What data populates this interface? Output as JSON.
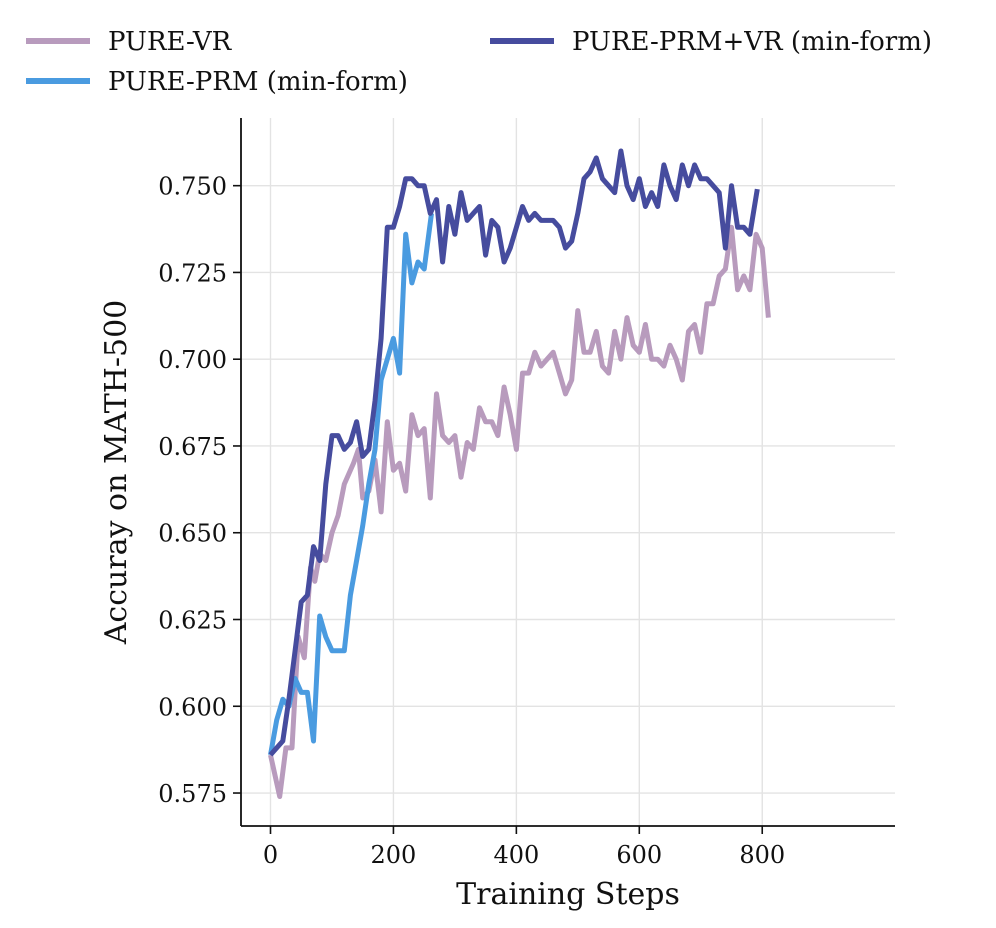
{
  "chart_data": {
    "type": "line",
    "title": "",
    "xlabel": "Training Steps",
    "ylabel": "Accuray on MATH-500",
    "xlim": [
      -48,
      1016
    ],
    "ylim": [
      0.5655,
      0.7695
    ],
    "xticks": [
      0,
      200,
      400,
      600,
      800
    ],
    "xtick_labels": [
      "0",
      "200",
      "400",
      "600",
      "800"
    ],
    "yticks": [
      0.575,
      0.6,
      0.625,
      0.65,
      0.675,
      0.7,
      0.725,
      0.75
    ],
    "ytick_labels": [
      "0.575",
      "0.600",
      "0.625",
      "0.650",
      "0.675",
      "0.700",
      "0.725",
      "0.750"
    ],
    "grid": true,
    "legend_position": "top",
    "series": [
      {
        "name": "PURE-VR",
        "color": "#b89bbd",
        "points": [
          [
            0,
            0.586
          ],
          [
            15,
            0.574
          ],
          [
            25,
            0.588
          ],
          [
            35,
            0.588
          ],
          [
            45,
            0.62
          ],
          [
            55,
            0.614
          ],
          [
            65,
            0.64
          ],
          [
            72,
            0.636
          ],
          [
            80,
            0.644
          ],
          [
            90,
            0.642
          ],
          [
            100,
            0.65
          ],
          [
            110,
            0.655
          ],
          [
            120,
            0.664
          ],
          [
            135,
            0.67
          ],
          [
            143,
            0.674
          ],
          [
            150,
            0.66
          ],
          [
            160,
            0.662
          ],
          [
            170,
            0.671
          ],
          [
            180,
            0.656
          ],
          [
            190,
            0.682
          ],
          [
            200,
            0.668
          ],
          [
            210,
            0.67
          ],
          [
            220,
            0.662
          ],
          [
            230,
            0.684
          ],
          [
            240,
            0.678
          ],
          [
            250,
            0.68
          ],
          [
            260,
            0.66
          ],
          [
            270,
            0.69
          ],
          [
            280,
            0.678
          ],
          [
            290,
            0.676
          ],
          [
            300,
            0.678
          ],
          [
            310,
            0.666
          ],
          [
            320,
            0.676
          ],
          [
            330,
            0.674
          ],
          [
            340,
            0.686
          ],
          [
            350,
            0.682
          ],
          [
            360,
            0.682
          ],
          [
            370,
            0.678
          ],
          [
            380,
            0.692
          ],
          [
            390,
            0.684
          ],
          [
            400,
            0.674
          ],
          [
            410,
            0.696
          ],
          [
            420,
            0.696
          ],
          [
            430,
            0.702
          ],
          [
            440,
            0.698
          ],
          [
            450,
            0.7
          ],
          [
            460,
            0.702
          ],
          [
            470,
            0.696
          ],
          [
            480,
            0.69
          ],
          [
            490,
            0.694
          ],
          [
            500,
            0.714
          ],
          [
            510,
            0.702
          ],
          [
            520,
            0.702
          ],
          [
            530,
            0.708
          ],
          [
            540,
            0.698
          ],
          [
            550,
            0.696
          ],
          [
            560,
            0.708
          ],
          [
            570,
            0.7
          ],
          [
            580,
            0.712
          ],
          [
            590,
            0.704
          ],
          [
            600,
            0.702
          ],
          [
            610,
            0.71
          ],
          [
            620,
            0.7
          ],
          [
            630,
            0.7
          ],
          [
            640,
            0.698
          ],
          [
            650,
            0.704
          ],
          [
            660,
            0.7
          ],
          [
            670,
            0.694
          ],
          [
            680,
            0.708
          ],
          [
            690,
            0.71
          ],
          [
            700,
            0.702
          ],
          [
            710,
            0.716
          ],
          [
            720,
            0.716
          ],
          [
            730,
            0.724
          ],
          [
            740,
            0.726
          ],
          [
            750,
            0.738
          ],
          [
            760,
            0.72
          ],
          [
            770,
            0.724
          ],
          [
            780,
            0.72
          ],
          [
            790,
            0.736
          ],
          [
            800,
            0.732
          ],
          [
            810,
            0.712
          ]
        ]
      },
      {
        "name": "PURE-PRM (min-form)",
        "color": "#4a9be0",
        "points": [
          [
            0,
            0.586
          ],
          [
            10,
            0.596
          ],
          [
            20,
            0.602
          ],
          [
            30,
            0.6
          ],
          [
            40,
            0.608
          ],
          [
            50,
            0.604
          ],
          [
            60,
            0.604
          ],
          [
            70,
            0.59
          ],
          [
            80,
            0.626
          ],
          [
            90,
            0.62
          ],
          [
            100,
            0.616
          ],
          [
            110,
            0.616
          ],
          [
            120,
            0.616
          ],
          [
            130,
            0.632
          ],
          [
            140,
            0.642
          ],
          [
            150,
            0.652
          ],
          [
            160,
            0.664
          ],
          [
            170,
            0.674
          ],
          [
            180,
            0.694
          ],
          [
            190,
            0.7
          ],
          [
            200,
            0.706
          ],
          [
            210,
            0.696
          ],
          [
            220,
            0.736
          ],
          [
            230,
            0.722
          ],
          [
            240,
            0.728
          ],
          [
            250,
            0.726
          ],
          [
            262,
            0.742
          ]
        ]
      },
      {
        "name": "PURE-PRM+VR (min-form)",
        "color": "#464c9e",
        "points": [
          [
            0,
            0.586
          ],
          [
            10,
            0.588
          ],
          [
            20,
            0.59
          ],
          [
            30,
            0.602
          ],
          [
            40,
            0.616
          ],
          [
            50,
            0.63
          ],
          [
            60,
            0.632
          ],
          [
            70,
            0.646
          ],
          [
            80,
            0.642
          ],
          [
            90,
            0.664
          ],
          [
            100,
            0.678
          ],
          [
            110,
            0.678
          ],
          [
            120,
            0.674
          ],
          [
            130,
            0.676
          ],
          [
            140,
            0.682
          ],
          [
            150,
            0.672
          ],
          [
            160,
            0.674
          ],
          [
            170,
            0.688
          ],
          [
            180,
            0.706
          ],
          [
            190,
            0.738
          ],
          [
            200,
            0.738
          ],
          [
            210,
            0.744
          ],
          [
            220,
            0.752
          ],
          [
            230,
            0.752
          ],
          [
            240,
            0.75
          ],
          [
            250,
            0.75
          ],
          [
            260,
            0.742
          ],
          [
            270,
            0.746
          ],
          [
            280,
            0.728
          ],
          [
            290,
            0.744
          ],
          [
            300,
            0.736
          ],
          [
            310,
            0.748
          ],
          [
            320,
            0.74
          ],
          [
            330,
            0.742
          ],
          [
            340,
            0.744
          ],
          [
            350,
            0.73
          ],
          [
            360,
            0.74
          ],
          [
            370,
            0.738
          ],
          [
            380,
            0.728
          ],
          [
            390,
            0.732
          ],
          [
            400,
            0.738
          ],
          [
            410,
            0.744
          ],
          [
            420,
            0.74
          ],
          [
            430,
            0.742
          ],
          [
            440,
            0.74
          ],
          [
            450,
            0.74
          ],
          [
            460,
            0.74
          ],
          [
            470,
            0.738
          ],
          [
            480,
            0.732
          ],
          [
            490,
            0.734
          ],
          [
            500,
            0.742
          ],
          [
            510,
            0.752
          ],
          [
            520,
            0.754
          ],
          [
            530,
            0.758
          ],
          [
            540,
            0.752
          ],
          [
            550,
            0.75
          ],
          [
            560,
            0.748
          ],
          [
            570,
            0.76
          ],
          [
            580,
            0.75
          ],
          [
            590,
            0.746
          ],
          [
            600,
            0.752
          ],
          [
            610,
            0.744
          ],
          [
            620,
            0.748
          ],
          [
            630,
            0.744
          ],
          [
            640,
            0.756
          ],
          [
            650,
            0.75
          ],
          [
            660,
            0.746
          ],
          [
            670,
            0.756
          ],
          [
            680,
            0.75
          ],
          [
            690,
            0.756
          ],
          [
            700,
            0.752
          ],
          [
            710,
            0.752
          ],
          [
            720,
            0.75
          ],
          [
            730,
            0.748
          ],
          [
            740,
            0.732
          ],
          [
            750,
            0.75
          ],
          [
            760,
            0.738
          ],
          [
            770,
            0.738
          ],
          [
            780,
            0.736
          ],
          [
            792,
            0.749
          ]
        ]
      }
    ]
  }
}
